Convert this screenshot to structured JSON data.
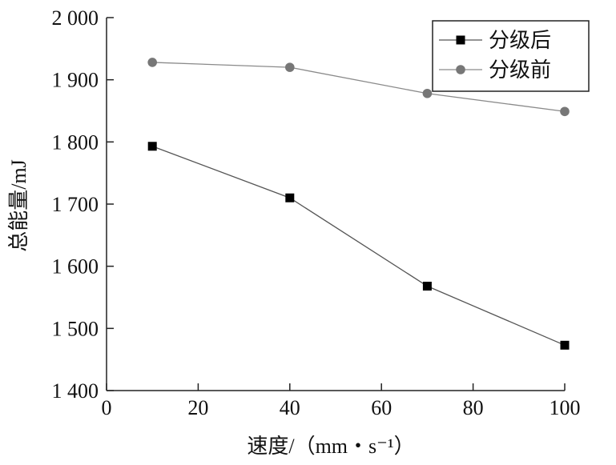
{
  "chart_data": {
    "type": "line",
    "title": "",
    "xlabel": "速度/（mm・s⁻¹）",
    "ylabel": "总能量/mJ",
    "xlim": [
      0,
      100
    ],
    "ylim": [
      1400,
      2000
    ],
    "xticks": [
      0,
      20,
      40,
      60,
      80,
      100
    ],
    "xtick_labels": [
      "0",
      "20",
      "40",
      "60",
      "80",
      "100"
    ],
    "yticks": [
      1400,
      1500,
      1600,
      1700,
      1800,
      1900,
      2000
    ],
    "ytick_labels": [
      "1 400",
      "1 500",
      "1 600",
      "1 700",
      "1 800",
      "1 900",
      "2 000"
    ],
    "x": [
      10,
      40,
      70,
      100
    ],
    "series": [
      {
        "name": "分级后",
        "values": [
          1793,
          1710,
          1568,
          1473
        ],
        "color": "#000000",
        "line_color": "#555555",
        "marker": "square"
      },
      {
        "name": "分级前",
        "values": [
          1928,
          1920,
          1878,
          1849
        ],
        "color": "#777777",
        "line_color": "#8a8a8a",
        "marker": "circle"
      }
    ],
    "grid": false,
    "legend_position": "top-right"
  }
}
